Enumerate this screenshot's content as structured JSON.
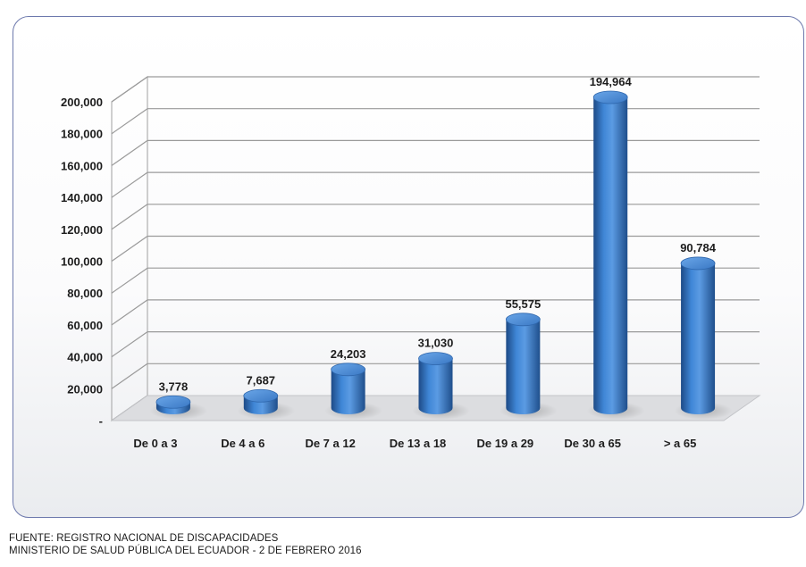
{
  "chart_data": {
    "type": "bar",
    "title": "",
    "xlabel": "",
    "ylabel": "",
    "categories": [
      "De 0 a 3",
      "De 4 a 6",
      "De 7 a 12",
      "De 13 a 18",
      "De 19 a 29",
      "De 30 a 65",
      "> a 65"
    ],
    "values": [
      3778,
      7687,
      24203,
      31030,
      55575,
      194964,
      90784
    ],
    "value_labels": [
      "3,778",
      "7,687",
      "24,203",
      "31,030",
      "55,575",
      "194,964",
      "90,784"
    ],
    "ylim": [
      0,
      200000
    ],
    "yticks": [
      0,
      20000,
      40000,
      60000,
      80000,
      100000,
      120000,
      140000,
      160000,
      180000,
      200000
    ],
    "ytick_labels": [
      "-",
      "20,000",
      "40,000",
      "60,000",
      "80,000",
      "100,000",
      "120,000",
      "140,000",
      "160,000",
      "180,000",
      "200,000"
    ],
    "grid": true,
    "legend": "none",
    "three_d": true,
    "bar_shape": "cylinder",
    "colors": {
      "bar_dark": "#1f4f8c",
      "bar_mid": "#3a7fd0",
      "bar_light": "#6aa6e8",
      "bar_top": "#4f8ed8",
      "grid_line": "#9a9a9a",
      "axis_wall": "#b0b0b0",
      "panel_border": "#6d79ad"
    }
  },
  "footnote": {
    "line1": "FUENTE: REGISTRO NACIONAL DE DISCAPACIDADES",
    "line2": "MINISTERIO DE SALUD PÚBLICA DEL ECUADOR - 2 DE FEBRERO 2016"
  }
}
